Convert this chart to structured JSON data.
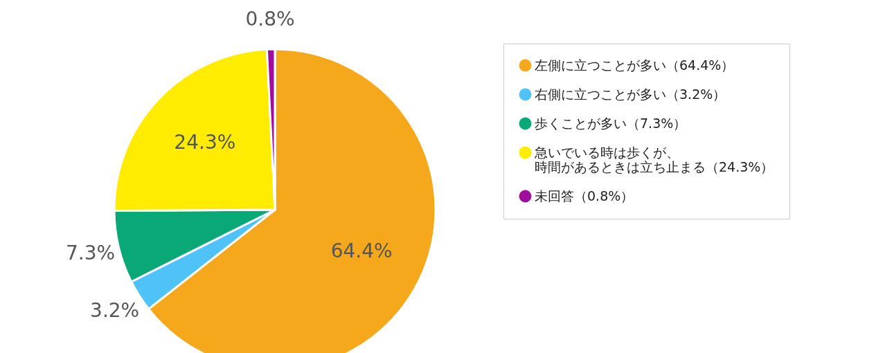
{
  "chart_data": {
    "type": "pie",
    "categories": [
      "左側に立つことが多い（64.4%）",
      "右側に立つことが多い（3.2%）",
      "歩くことが多い（7.3%）",
      "急いでいる時は歩くが、時間があるときは立ち止まる（24.3%）",
      "未回答（0.8%）"
    ],
    "values": [
      64.4,
      3.2,
      7.3,
      24.3,
      0.8
    ],
    "colors": [
      "#f5a81c",
      "#4fc3f7",
      "#0aa877",
      "#ffec00",
      "#9c0f9c"
    ],
    "value_labels": [
      "64.4%",
      "3.2%",
      "7.3%",
      "24.3%",
      "0.8%"
    ],
    "legend": "right"
  }
}
